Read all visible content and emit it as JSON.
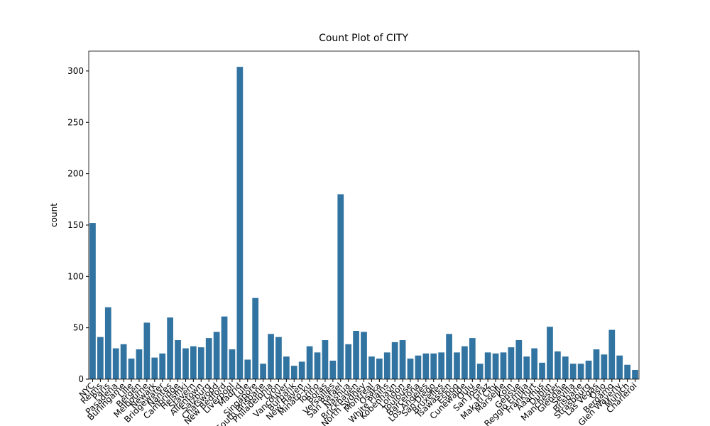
{
  "chart_data": {
    "type": "bar",
    "title": "Count Plot of CITY",
    "y_label": "count",
    "color": "#3274a1",
    "categories": [
      "NYC",
      "Reims",
      "Paris",
      "Pasadena",
      "Burlingame",
      "Lille",
      "Bergen",
      "Melbourne",
      "Newark",
      "Bridgewater",
      "Nantes",
      "Cambridge",
      "Helsinki",
      "Stavern",
      "Allentown",
      "Salzburg",
      "Chatswood",
      "New Bedford",
      "Liverpool",
      "Madrid",
      "Lule",
      "Singapore",
      "South Brisbane",
      "Philadelphia",
      "Lyon",
      "Vancouver",
      "Burbank",
      "New Haven",
      "Minato-ku",
      "Torino",
      "Boras",
      "Versailles",
      "San Rafael",
      "Nashua",
      "Brickhaven",
      "North Sydney",
      "Montreal",
      "Osaka",
      "White Plains",
      "Kobenhavn",
      "London",
      "Toulouse",
      "Barcelona",
      "Los Angeles",
      "San Diego",
      "Bruxelles",
      "Tsawassen",
      "Espoo",
      "Cunewalde",
      "Oulu",
      "San Jose",
      "Graz",
      "Makati City",
      "Marseille",
      "Koln",
      "Gensve",
      "Reggio Emilia",
      "Frankfurt",
      "Aaarhus",
      "Dublin",
      "Manchester",
      "Glendale",
      "Sevilla",
      "Brisbane",
      "Strasbourg",
      "Las Vegas",
      "Oslo",
      "Bergamo",
      "Glen Waverly",
      "Munich",
      "Charleroi"
    ],
    "values": [
      152,
      41,
      70,
      30,
      34,
      20,
      29,
      55,
      21,
      25,
      60,
      38,
      30,
      32,
      31,
      40,
      46,
      61,
      29,
      304,
      19,
      79,
      15,
      44,
      41,
      22,
      13,
      17,
      32,
      26,
      38,
      18,
      180,
      34,
      47,
      46,
      22,
      20,
      26,
      36,
      38,
      20,
      23,
      25,
      25,
      26,
      44,
      26,
      32,
      40,
      15,
      26,
      25,
      26,
      31,
      38,
      22,
      30,
      16,
      51,
      27,
      22,
      15,
      15,
      18,
      29,
      24,
      48,
      23,
      14,
      9
    ],
    "ylim": [
      0,
      319.3
    ],
    "yticks": [
      0,
      50,
      100,
      150,
      200,
      250,
      300
    ]
  }
}
